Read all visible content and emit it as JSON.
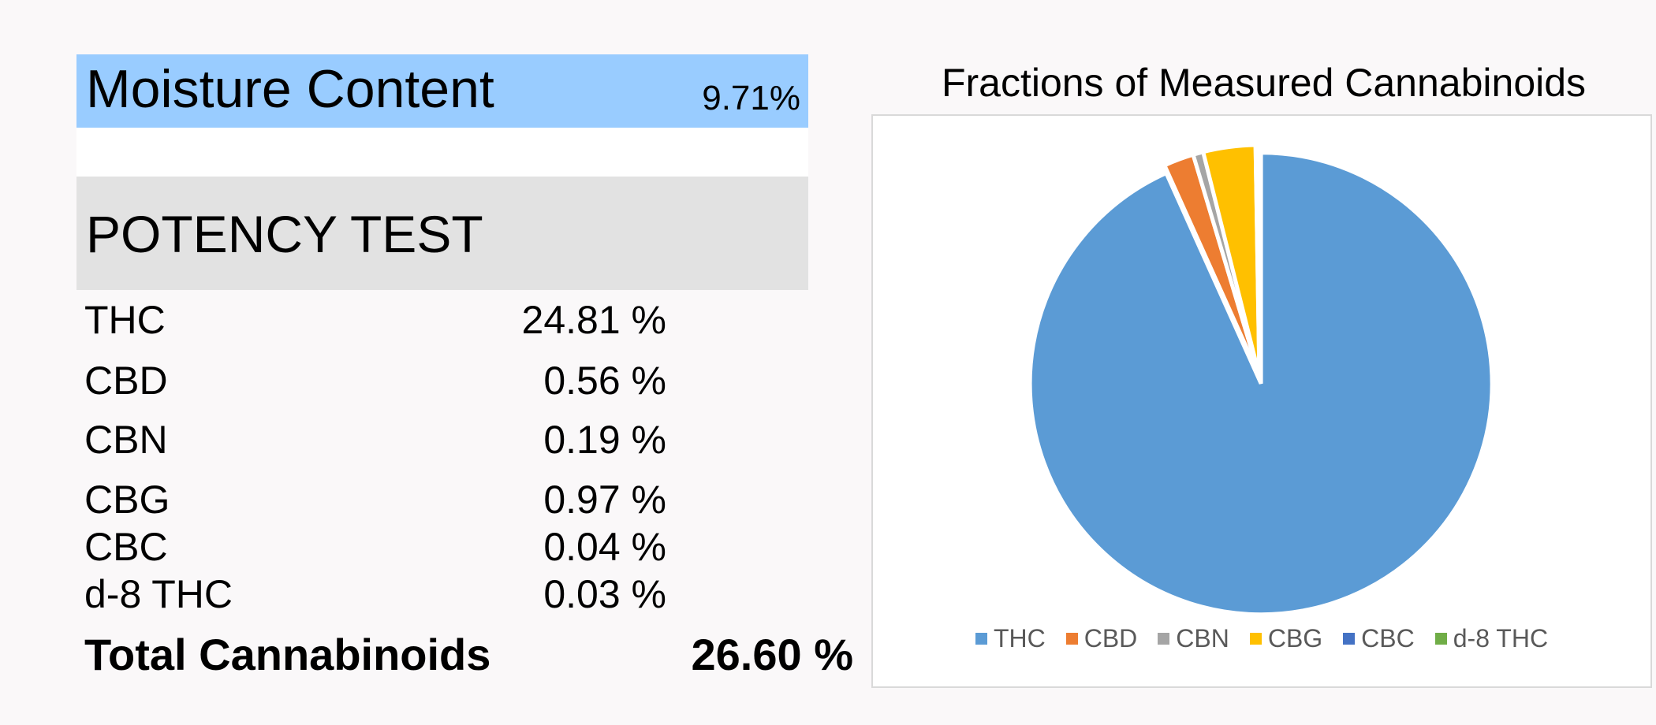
{
  "moisture": {
    "label": "Moisture Content",
    "value": "9.71%"
  },
  "potency": {
    "title": "POTENCY TEST",
    "rows": [
      {
        "name": "THC",
        "value": "24.81 %"
      },
      {
        "name": "CBD",
        "value": "0.56 %"
      },
      {
        "name": "CBN",
        "value": "0.19 %"
      },
      {
        "name": "CBG",
        "value": "0.97 %"
      },
      {
        "name": "CBC",
        "value": "0.04 %"
      },
      {
        "name": "d-8 THC",
        "value": "0.03 %"
      }
    ],
    "total_label": "Total Cannabinoids",
    "total_value": "26.60 %"
  },
  "chart_data": {
    "type": "pie",
    "title": "Fractions of Measured Cannabinoids",
    "categories": [
      "THC",
      "CBD",
      "CBN",
      "CBG",
      "CBC",
      "d-8 THC"
    ],
    "values": [
      24.81,
      0.56,
      0.19,
      0.97,
      0.04,
      0.03
    ],
    "colors": [
      "#5b9bd5",
      "#ed7d31",
      "#a5a5a5",
      "#ffc000",
      "#4472c4",
      "#70ad47"
    ],
    "exploded": "THC",
    "legend": "bottom"
  }
}
